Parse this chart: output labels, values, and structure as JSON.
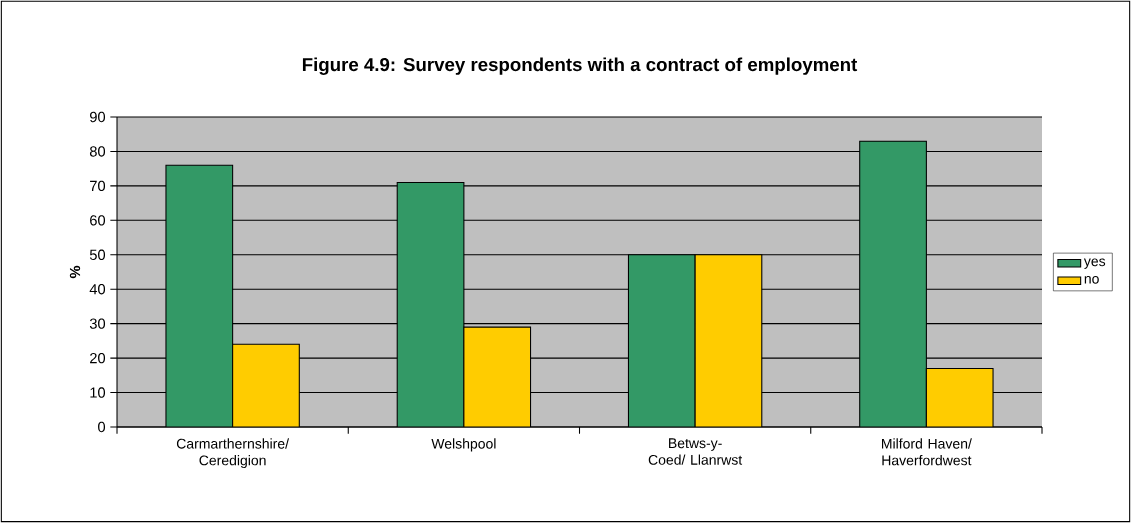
{
  "chart_data": {
    "type": "bar",
    "title": "Figure 4.9: Survey respondents with a contract of employment",
    "categories": [
      "Carmarthernshire/ Ceredigion",
      "Welshpool",
      "Betws-y-Coed/ Llanrwst",
      "Milford Haven/ Haverfordwest"
    ],
    "series": [
      {
        "name": "yes",
        "color": "#339966",
        "values": [
          76,
          71,
          50,
          83
        ]
      },
      {
        "name": "no",
        "color": "#ffcc00",
        "values": [
          24,
          29,
          50,
          17
        ]
      }
    ],
    "ylabel": "%",
    "ylim": [
      0,
      90
    ],
    "yticks": [
      0,
      10,
      20,
      30,
      40,
      50,
      60,
      70,
      80,
      90
    ],
    "grid": "y",
    "legend": "right"
  }
}
